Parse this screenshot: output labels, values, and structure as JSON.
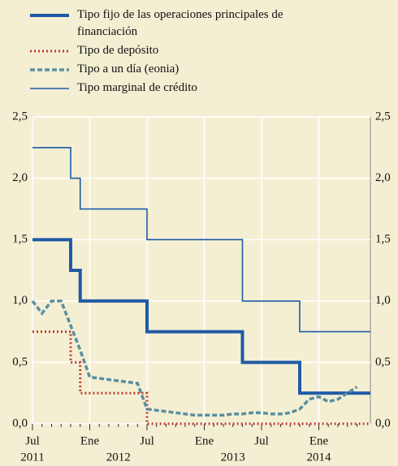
{
  "chart_data": {
    "type": "line",
    "x": [
      "2011-07",
      "2011-08",
      "2011-09",
      "2011-10",
      "2011-11",
      "2011-12",
      "2012-01",
      "2012-02",
      "2012-03",
      "2012-04",
      "2012-05",
      "2012-06",
      "2012-07",
      "2012-08",
      "2012-09",
      "2012-10",
      "2012-11",
      "2012-12",
      "2013-01",
      "2013-02",
      "2013-03",
      "2013-04",
      "2013-05",
      "2013-06",
      "2013-07",
      "2013-08",
      "2013-09",
      "2013-10",
      "2013-11",
      "2013-12",
      "2014-01",
      "2014-02",
      "2014-03",
      "2014-04",
      "2014-05"
    ],
    "series": [
      {
        "name": "Tipo fijo de las operaciones principales de financiación",
        "color": "#1f5aa6",
        "style": "thick",
        "drawstyle": "steps-post",
        "values": [
          1.5,
          1.5,
          1.5,
          1.5,
          1.25,
          1.0,
          1.0,
          1.0,
          1.0,
          1.0,
          1.0,
          1.0,
          0.75,
          0.75,
          0.75,
          0.75,
          0.75,
          0.75,
          0.75,
          0.75,
          0.75,
          0.75,
          0.5,
          0.5,
          0.5,
          0.5,
          0.5,
          0.5,
          0.25,
          0.25,
          0.25,
          0.25,
          0.25,
          0.25,
          0.25
        ]
      },
      {
        "name": "Tipo de depósito",
        "color": "#c0392b",
        "style": "dotted",
        "drawstyle": "steps-post",
        "values": [
          0.75,
          0.75,
          0.75,
          0.75,
          0.5,
          0.25,
          0.25,
          0.25,
          0.25,
          0.25,
          0.25,
          0.25,
          0,
          0,
          0,
          0,
          0,
          0,
          0,
          0,
          0,
          0,
          0,
          0,
          0,
          0,
          0,
          0,
          0,
          0,
          0,
          0,
          0,
          0,
          0
        ]
      },
      {
        "name": "Tipo a un día (eonia)",
        "color": "#5a8fa0",
        "style": "dashed",
        "drawstyle": "linear",
        "values": [
          1.0,
          0.9,
          1.0,
          1.0,
          0.8,
          0.6,
          0.38,
          0.37,
          0.36,
          0.35,
          0.34,
          0.33,
          0.12,
          0.11,
          0.1,
          0.09,
          0.08,
          0.07,
          0.07,
          0.07,
          0.07,
          0.08,
          0.08,
          0.09,
          0.09,
          0.08,
          0.08,
          0.09,
          0.12,
          0.2,
          0.22,
          0.18,
          0.2,
          0.25,
          0.3
        ]
      },
      {
        "name": "Tipo marginal de crédito",
        "color": "#1f5aa6",
        "style": "thin",
        "drawstyle": "steps-post",
        "values": [
          2.25,
          2.25,
          2.25,
          2.25,
          2.0,
          1.75,
          1.75,
          1.75,
          1.75,
          1.75,
          1.75,
          1.75,
          1.5,
          1.5,
          1.5,
          1.5,
          1.5,
          1.5,
          1.5,
          1.5,
          1.5,
          1.5,
          1.0,
          1.0,
          1.0,
          1.0,
          1.0,
          1.0,
          0.75,
          0.75,
          0.75,
          0.75,
          0.75,
          0.75,
          0.75
        ]
      }
    ],
    "ylim": [
      0,
      2.5
    ],
    "yticks": [
      {
        "value": 0,
        "label": "0,0"
      },
      {
        "value": 0.5,
        "label": "0,5"
      },
      {
        "value": 1,
        "label": "1,0"
      },
      {
        "value": 1.5,
        "label": "1,5"
      },
      {
        "value": 2,
        "label": "2,0"
      },
      {
        "value": 2.5,
        "label": "2,5"
      }
    ],
    "xticks": [
      {
        "value": "2011-07",
        "label": "Jul"
      },
      {
        "value": "2012-01",
        "label": "Ene"
      },
      {
        "value": "2012-07",
        "label": "Jul"
      },
      {
        "value": "2013-01",
        "label": "Ene"
      },
      {
        "value": "2013-07",
        "label": "Jul"
      },
      {
        "value": "2014-01",
        "label": "Ene"
      }
    ],
    "year_labels": [
      {
        "value": "2011-07",
        "label": "2011"
      },
      {
        "value": "2012-04",
        "label": "2012"
      },
      {
        "value": "2013-04",
        "label": "2013"
      },
      {
        "value": "2014-01",
        "label": "2014"
      }
    ],
    "grid": true
  }
}
